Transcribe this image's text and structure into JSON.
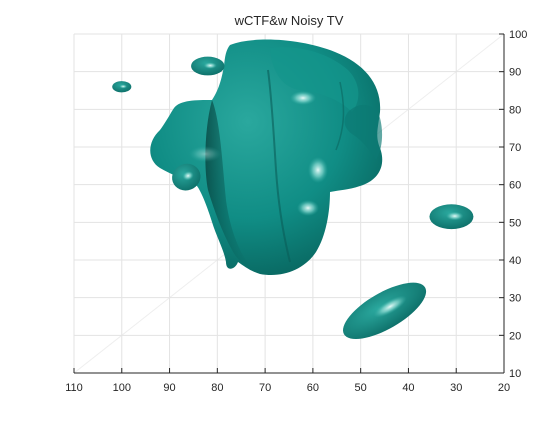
{
  "chart_data": {
    "type": "isosurface",
    "title": "wCTF&w Noisy TV",
    "xlabel": "",
    "ylabel": "",
    "x_ticks": [
      110,
      100,
      90,
      80,
      70,
      60,
      50,
      40,
      30,
      20
    ],
    "y_ticks": [
      10,
      20,
      30,
      40,
      50,
      60,
      70,
      80,
      90,
      100
    ],
    "xlim": [
      110,
      20
    ],
    "ylim": [
      10,
      100
    ],
    "x_reversed": true,
    "y_axis_side": "right",
    "grid": true,
    "colors": {
      "surface": "#0f8e86",
      "surface_dark": "#0a615b",
      "surface_light": "#33b3a8",
      "highlight": "#e6fffb",
      "grid": "#e3e3e3",
      "axis": "#262626"
    },
    "blobs": [
      {
        "name": "small-upper-left-blob",
        "cx": 100,
        "cy": 86,
        "rx": 2,
        "ry": 1.5,
        "rot": 0,
        "shade": "mid"
      },
      {
        "name": "upper-left-lobe-blob",
        "cx": 82,
        "cy": 91.5,
        "rx": 3.5,
        "ry": 2.5,
        "rot": 0,
        "shade": "mid"
      },
      {
        "name": "small-left-blob",
        "cx": 86.5,
        "cy": 62,
        "rx": 3,
        "ry": 3.5,
        "rot": -20,
        "shade": "mid"
      },
      {
        "name": "right-blob",
        "cx": 31,
        "cy": 51.5,
        "rx": 4.6,
        "ry": 3.3,
        "rot": 0,
        "shade": "mid"
      },
      {
        "name": "lower-right-blob",
        "cx": 45,
        "cy": 26.5,
        "rx": 9.8,
        "ry": 4.8,
        "rot": -30,
        "shade": "mid"
      }
    ]
  }
}
